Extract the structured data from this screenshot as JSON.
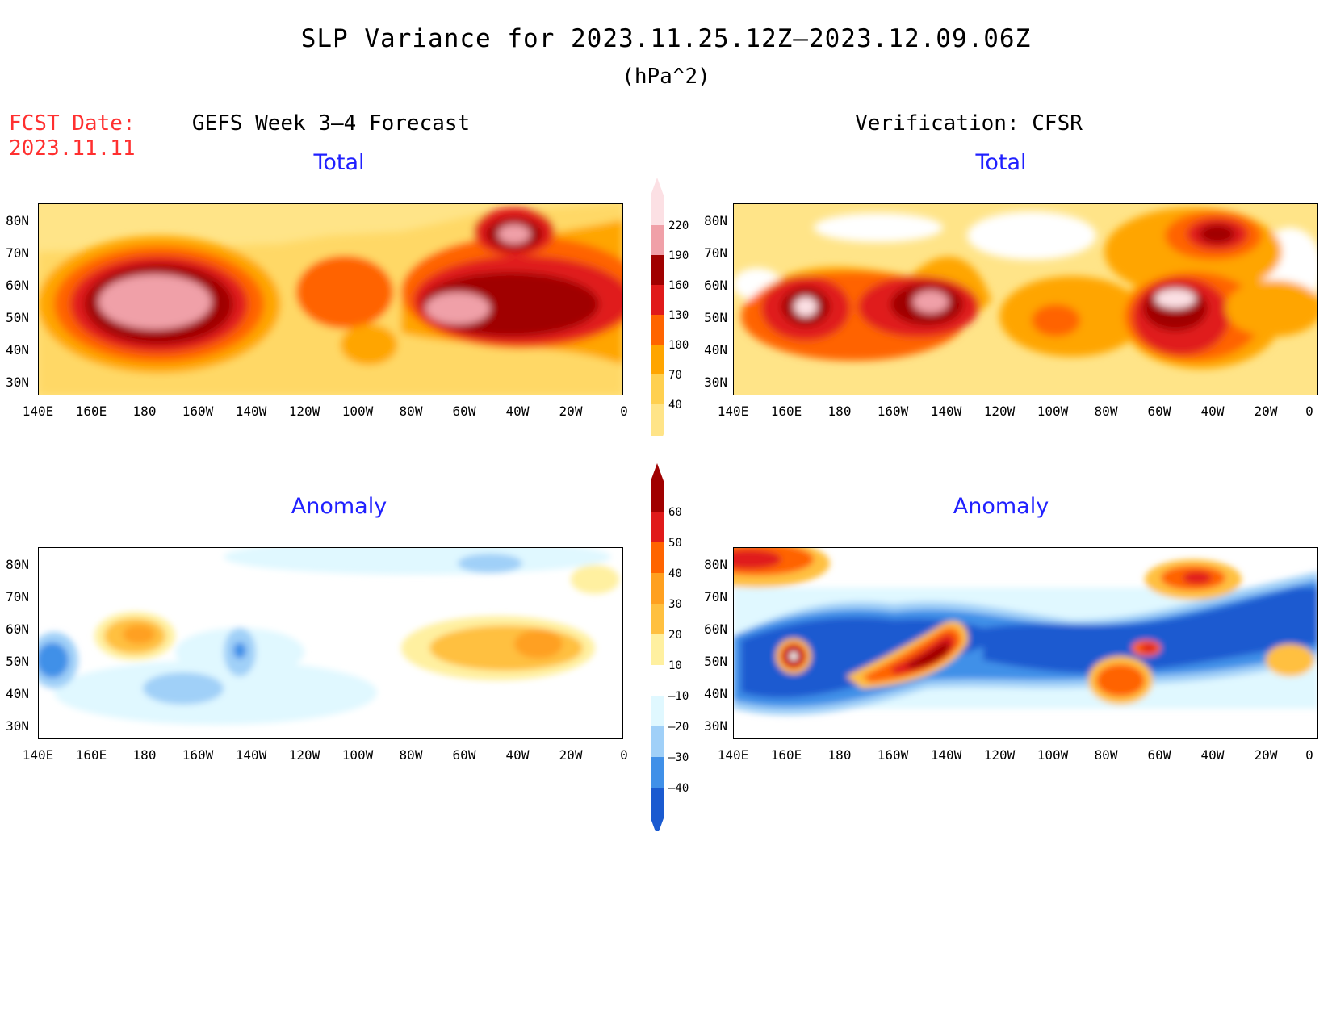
{
  "title": "SLP Variance for 2023.11.25.12Z–2023.12.09.06Z",
  "units": "(hPa^2)",
  "fcst_date_label": "FCST Date:",
  "fcst_date_value": "2023.11.11",
  "left_column_title": "GEFS Week 3–4 Forecast",
  "right_column_title": "Verification: CFSR",
  "panels": {
    "top_left": "Total",
    "top_right": "Total",
    "bottom_left": "Anomaly",
    "bottom_right": "Anomaly"
  },
  "lat_labels": [
    "80N",
    "70N",
    "60N",
    "50N",
    "40N",
    "30N"
  ],
  "lon_labels": [
    "140E",
    "160E",
    "180",
    "160W",
    "140W",
    "120W",
    "100W",
    "80W",
    "60W",
    "40W",
    "20W",
    "0"
  ],
  "total_colorbar": {
    "levels": [
      "220",
      "190",
      "160",
      "130",
      "100",
      "70",
      "40"
    ],
    "colors": [
      "#fce0e4",
      "#f0a0a8",
      "#a00000",
      "#e01a1a",
      "#ff6400",
      "#ffa500",
      "#ffd050",
      "#ffe488"
    ]
  },
  "anomaly_colorbar": {
    "levels": [
      "60",
      "50",
      "40",
      "30",
      "20",
      "10",
      "–10",
      "–20",
      "–30",
      "–40"
    ],
    "colors": [
      "#a00000",
      "#e01a1a",
      "#ff6400",
      "#ffa020",
      "#ffc040",
      "#fff0a0",
      "#ffffff",
      "#e0f8ff",
      "#a0d0f8",
      "#4090e8",
      "#1a5ad0"
    ]
  }
}
